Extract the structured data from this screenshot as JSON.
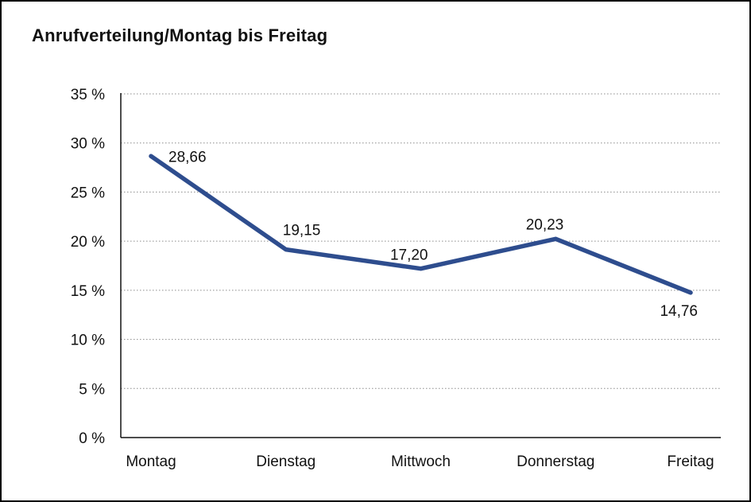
{
  "title": "Anrufverteilung/Montag bis Freitag",
  "chart_data": {
    "type": "line",
    "title": "Anrufverteilung/Montag bis Freitag",
    "categories": [
      "Montag",
      "Dienstag",
      "Mittwoch",
      "Donnerstag",
      "Freitag"
    ],
    "values": [
      28.66,
      19.15,
      17.2,
      20.23,
      14.76
    ],
    "point_labels": [
      "28,66",
      "19,15",
      "17,20",
      "20,23",
      "14,76"
    ],
    "xlabel": "",
    "ylabel": "",
    "ylim": [
      0,
      35
    ],
    "y_tick_step": 5,
    "y_tick_labels": [
      "0 %",
      "5 %",
      "10 %",
      "15 %",
      "20 %",
      "25 %",
      "30 %",
      "35 %"
    ],
    "grid": true,
    "legend": false,
    "line_color": "#2E4D8E",
    "grid_color": "#8C8C8C",
    "axis_color": "#111111",
    "background_color": "#FFFFFF"
  }
}
